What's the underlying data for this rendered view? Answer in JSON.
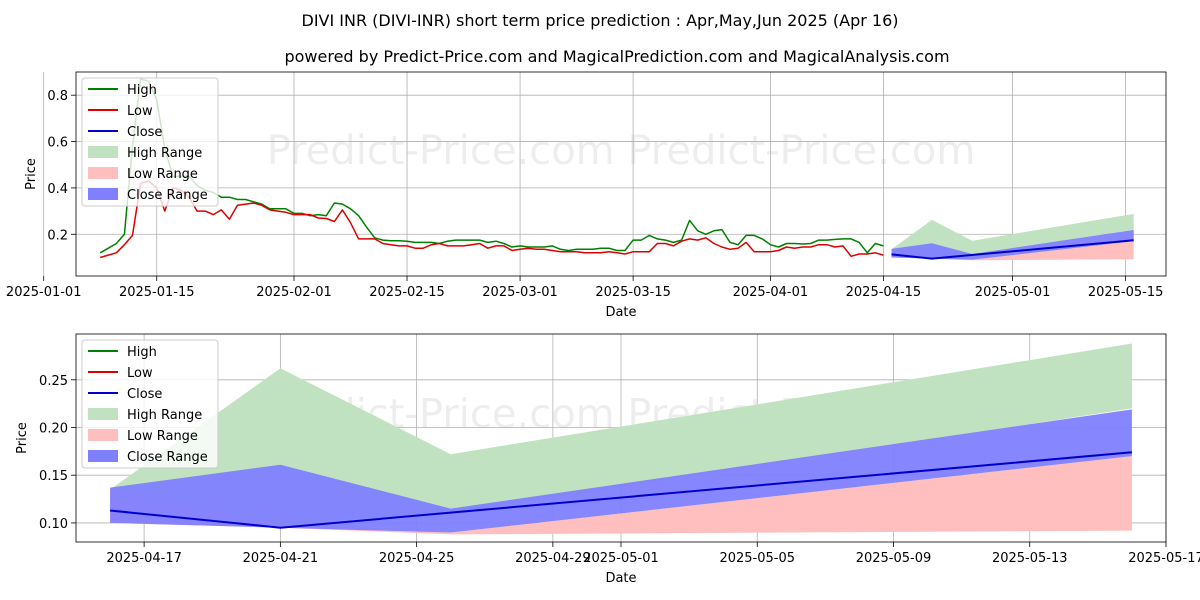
{
  "title": "DIVI INR (DIVI-INR) short term price prediction : Apr,May,Jun 2025 (Apr 16)",
  "subtitle": "powered by Predict-Price.com and MagicalPrediction.com and MagicalAnalysis.com",
  "watermark": "Predict-Price.com",
  "colors": {
    "high": "#008000",
    "low": "#dd0000",
    "close": "#0000cc",
    "high_range": "#c1e2c1",
    "low_range": "#ffbfbf",
    "close_range": "#7f7fff",
    "grid": "#b0b0b0"
  },
  "chart_data": [
    {
      "type": "line",
      "name": "top",
      "xlabel": "Date",
      "ylabel": "Price",
      "xlim": [
        "2025-01-05",
        "2025-05-20"
      ],
      "ylim": [
        0.02,
        0.9
      ],
      "grid": true,
      "legend_position": "top-left",
      "xticks": [
        "2025-01-01",
        "2025-01-15",
        "2025-02-01",
        "2025-02-15",
        "2025-03-01",
        "2025-03-15",
        "2025-04-01",
        "2025-04-15",
        "2025-05-01",
        "2025-05-15"
      ],
      "yticks": [
        0.2,
        0.4,
        0.6,
        0.8
      ],
      "ytick_labels": [
        "0.2",
        "0.4",
        "0.6",
        "0.8"
      ],
      "legend": [
        "High",
        "Low",
        "Close",
        "High Range",
        "Low Range",
        "Close Range"
      ],
      "series": [
        {
          "name": "High",
          "color": "#008000",
          "x": [
            "2025-01-08",
            "2025-01-09",
            "2025-01-10",
            "2025-01-11",
            "2025-01-12",
            "2025-01-13",
            "2025-01-14",
            "2025-01-15",
            "2025-01-16",
            "2025-01-17",
            "2025-01-18",
            "2025-01-19",
            "2025-01-20",
            "2025-01-21",
            "2025-01-22",
            "2025-01-23",
            "2025-01-24",
            "2025-01-25",
            "2025-01-26",
            "2025-01-27",
            "2025-01-28",
            "2025-01-29",
            "2025-01-30",
            "2025-01-31",
            "2025-02-01",
            "2025-02-02",
            "2025-02-03",
            "2025-02-04",
            "2025-02-05",
            "2025-02-06",
            "2025-02-07",
            "2025-02-08",
            "2025-02-09",
            "2025-02-10",
            "2025-02-11",
            "2025-02-12",
            "2025-02-13",
            "2025-02-14",
            "2025-02-15",
            "2025-02-16",
            "2025-02-17",
            "2025-02-18",
            "2025-02-19",
            "2025-02-20",
            "2025-02-21",
            "2025-02-22",
            "2025-02-23",
            "2025-02-24",
            "2025-02-25",
            "2025-02-26",
            "2025-02-27",
            "2025-02-28",
            "2025-03-01",
            "2025-03-02",
            "2025-03-03",
            "2025-03-04",
            "2025-03-05",
            "2025-03-06",
            "2025-03-07",
            "2025-03-08",
            "2025-03-09",
            "2025-03-10",
            "2025-03-11",
            "2025-03-12",
            "2025-03-13",
            "2025-03-14",
            "2025-03-15",
            "2025-03-16",
            "2025-03-17",
            "2025-03-18",
            "2025-03-19",
            "2025-03-20",
            "2025-03-21",
            "2025-03-22",
            "2025-03-23",
            "2025-03-24",
            "2025-03-25",
            "2025-03-26",
            "2025-03-27",
            "2025-03-28",
            "2025-03-29",
            "2025-03-30",
            "2025-03-31",
            "2025-04-01",
            "2025-04-02",
            "2025-04-03",
            "2025-04-04",
            "2025-04-05",
            "2025-04-06",
            "2025-04-07",
            "2025-04-08",
            "2025-04-09",
            "2025-04-10",
            "2025-04-11",
            "2025-04-12",
            "2025-04-13",
            "2025-04-14",
            "2025-04-15"
          ],
          "y": [
            0.12,
            0.14,
            0.16,
            0.2,
            0.58,
            0.87,
            0.86,
            0.78,
            0.57,
            0.45,
            0.45,
            0.45,
            0.41,
            0.39,
            0.38,
            0.36,
            0.36,
            0.35,
            0.35,
            0.34,
            0.33,
            0.31,
            0.31,
            0.31,
            0.29,
            0.29,
            0.28,
            0.285,
            0.28,
            0.335,
            0.33,
            0.31,
            0.28,
            0.23,
            0.185,
            0.175,
            0.172,
            0.172,
            0.17,
            0.165,
            0.165,
            0.165,
            0.16,
            0.17,
            0.175,
            0.175,
            0.175,
            0.175,
            0.165,
            0.17,
            0.16,
            0.145,
            0.15,
            0.145,
            0.145,
            0.145,
            0.15,
            0.135,
            0.13,
            0.135,
            0.135,
            0.135,
            0.14,
            0.14,
            0.13,
            0.13,
            0.175,
            0.175,
            0.195,
            0.18,
            0.175,
            0.165,
            0.175,
            0.26,
            0.215,
            0.2,
            0.215,
            0.22,
            0.165,
            0.155,
            0.195,
            0.195,
            0.18,
            0.155,
            0.145,
            0.16,
            0.16,
            0.158,
            0.16,
            0.175,
            0.175,
            0.178,
            0.18,
            0.18,
            0.165,
            0.12,
            0.16,
            0.15
          ]
        },
        {
          "name": "Low",
          "color": "#dd0000",
          "x": [
            "2025-01-08",
            "2025-01-09",
            "2025-01-10",
            "2025-01-11",
            "2025-01-12",
            "2025-01-13",
            "2025-01-14",
            "2025-01-15",
            "2025-01-16",
            "2025-01-17",
            "2025-01-18",
            "2025-01-19",
            "2025-01-20",
            "2025-01-21",
            "2025-01-22",
            "2025-01-23",
            "2025-01-24",
            "2025-01-25",
            "2025-01-26",
            "2025-01-27",
            "2025-01-28",
            "2025-01-29",
            "2025-01-30",
            "2025-01-31",
            "2025-02-01",
            "2025-02-02",
            "2025-02-03",
            "2025-02-04",
            "2025-02-05",
            "2025-02-06",
            "2025-02-07",
            "2025-02-08",
            "2025-02-09",
            "2025-02-10",
            "2025-02-11",
            "2025-02-12",
            "2025-02-13",
            "2025-02-14",
            "2025-02-15",
            "2025-02-16",
            "2025-02-17",
            "2025-02-18",
            "2025-02-19",
            "2025-02-20",
            "2025-02-21",
            "2025-02-22",
            "2025-02-23",
            "2025-02-24",
            "2025-02-25",
            "2025-02-26",
            "2025-02-27",
            "2025-02-28",
            "2025-03-01",
            "2025-03-02",
            "2025-03-03",
            "2025-03-04",
            "2025-03-05",
            "2025-03-06",
            "2025-03-07",
            "2025-03-08",
            "2025-03-09",
            "2025-03-10",
            "2025-03-11",
            "2025-03-12",
            "2025-03-13",
            "2025-03-14",
            "2025-03-15",
            "2025-03-16",
            "2025-03-17",
            "2025-03-18",
            "2025-03-19",
            "2025-03-20",
            "2025-03-21",
            "2025-03-22",
            "2025-03-23",
            "2025-03-24",
            "2025-03-25",
            "2025-03-26",
            "2025-03-27",
            "2025-03-28",
            "2025-03-29",
            "2025-03-30",
            "2025-03-31",
            "2025-04-01",
            "2025-04-02",
            "2025-04-03",
            "2025-04-04",
            "2025-04-05",
            "2025-04-06",
            "2025-04-07",
            "2025-04-08",
            "2025-04-09",
            "2025-04-10",
            "2025-04-11",
            "2025-04-12",
            "2025-04-13",
            "2025-04-14",
            "2025-04-15"
          ],
          "y": [
            0.1,
            0.11,
            0.12,
            0.155,
            0.195,
            0.42,
            0.43,
            0.4,
            0.3,
            0.4,
            0.39,
            0.36,
            0.3,
            0.3,
            0.285,
            0.305,
            0.265,
            0.325,
            0.33,
            0.335,
            0.325,
            0.305,
            0.3,
            0.295,
            0.285,
            0.285,
            0.285,
            0.27,
            0.268,
            0.255,
            0.305,
            0.25,
            0.18,
            0.18,
            0.18,
            0.16,
            0.155,
            0.15,
            0.15,
            0.14,
            0.14,
            0.155,
            0.16,
            0.15,
            0.15,
            0.15,
            0.155,
            0.16,
            0.14,
            0.15,
            0.15,
            0.13,
            0.135,
            0.14,
            0.135,
            0.135,
            0.13,
            0.125,
            0.125,
            0.125,
            0.12,
            0.12,
            0.12,
            0.125,
            0.12,
            0.115,
            0.125,
            0.125,
            0.125,
            0.16,
            0.16,
            0.15,
            0.17,
            0.18,
            0.175,
            0.185,
            0.16,
            0.145,
            0.135,
            0.14,
            0.165,
            0.125,
            0.125,
            0.125,
            0.13,
            0.145,
            0.14,
            0.145,
            0.145,
            0.155,
            0.155,
            0.145,
            0.15,
            0.105,
            0.115,
            0.115,
            0.12,
            0.11
          ]
        },
        {
          "name": "Close",
          "color": "#0000cc",
          "x": [
            "2025-04-16",
            "2025-04-21",
            "2025-05-16"
          ],
          "y": [
            0.113,
            0.095,
            0.174
          ]
        }
      ],
      "ranges": [
        {
          "name": "High Range",
          "color": "#c1e2c1",
          "x": [
            "2025-04-16",
            "2025-04-21",
            "2025-04-26",
            "2025-05-16"
          ],
          "lower": [
            0.12,
            0.1,
            0.11,
            0.22
          ],
          "upper": [
            0.135,
            0.262,
            0.172,
            0.288
          ]
        },
        {
          "name": "Low Range",
          "color": "#ffbfbf",
          "x": [
            "2025-04-16",
            "2025-04-21",
            "2025-04-26",
            "2025-05-16"
          ],
          "lower": [
            0.1,
            0.095,
            0.088,
            0.092
          ],
          "upper": [
            0.135,
            0.1,
            0.09,
            0.17
          ]
        },
        {
          "name": "Close Range",
          "color": "#7f7fff",
          "x": [
            "2025-04-16",
            "2025-04-21",
            "2025-04-26",
            "2025-05-16"
          ],
          "lower": [
            0.1,
            0.095,
            0.09,
            0.17
          ],
          "upper": [
            0.137,
            0.161,
            0.115,
            0.219
          ]
        }
      ]
    },
    {
      "type": "line",
      "name": "bottom",
      "xlabel": "Date",
      "ylabel": "Price",
      "xlim": [
        "2025-04-15",
        "2025-05-17"
      ],
      "ylim": [
        0.08,
        0.298
      ],
      "grid": true,
      "legend_position": "top-left",
      "xticks": [
        "2025-04-17",
        "2025-04-21",
        "2025-04-25",
        "2025-04-29",
        "2025-05-01",
        "2025-05-05",
        "2025-05-09",
        "2025-05-13",
        "2025-05-17"
      ],
      "yticks": [
        0.1,
        0.15,
        0.2,
        0.25
      ],
      "ytick_labels": [
        "0.10",
        "0.15",
        "0.20",
        "0.25"
      ],
      "legend": [
        "High",
        "Low",
        "Close",
        "High Range",
        "Low Range",
        "Close Range"
      ],
      "series": [
        {
          "name": "Close",
          "color": "#0000cc",
          "x": [
            "2025-04-16",
            "2025-04-21",
            "2025-05-16"
          ],
          "y": [
            0.113,
            0.095,
            0.174
          ]
        }
      ],
      "ranges": [
        {
          "name": "High Range",
          "color": "#c1e2c1",
          "x": [
            "2025-04-16",
            "2025-04-21",
            "2025-04-26",
            "2025-05-16"
          ],
          "lower": [
            0.12,
            0.1,
            0.11,
            0.22
          ],
          "upper": [
            0.135,
            0.262,
            0.172,
            0.288
          ]
        },
        {
          "name": "Low Range",
          "color": "#ffbfbf",
          "x": [
            "2025-04-16",
            "2025-04-21",
            "2025-04-26",
            "2025-05-16"
          ],
          "lower": [
            0.1,
            0.095,
            0.088,
            0.092
          ],
          "upper": [
            0.135,
            0.1,
            0.09,
            0.17
          ]
        },
        {
          "name": "Close Range",
          "color": "#7f7fff",
          "x": [
            "2025-04-16",
            "2025-04-21",
            "2025-04-26",
            "2025-05-16"
          ],
          "lower": [
            0.1,
            0.095,
            0.09,
            0.17
          ],
          "upper": [
            0.137,
            0.161,
            0.115,
            0.219
          ]
        }
      ]
    }
  ]
}
